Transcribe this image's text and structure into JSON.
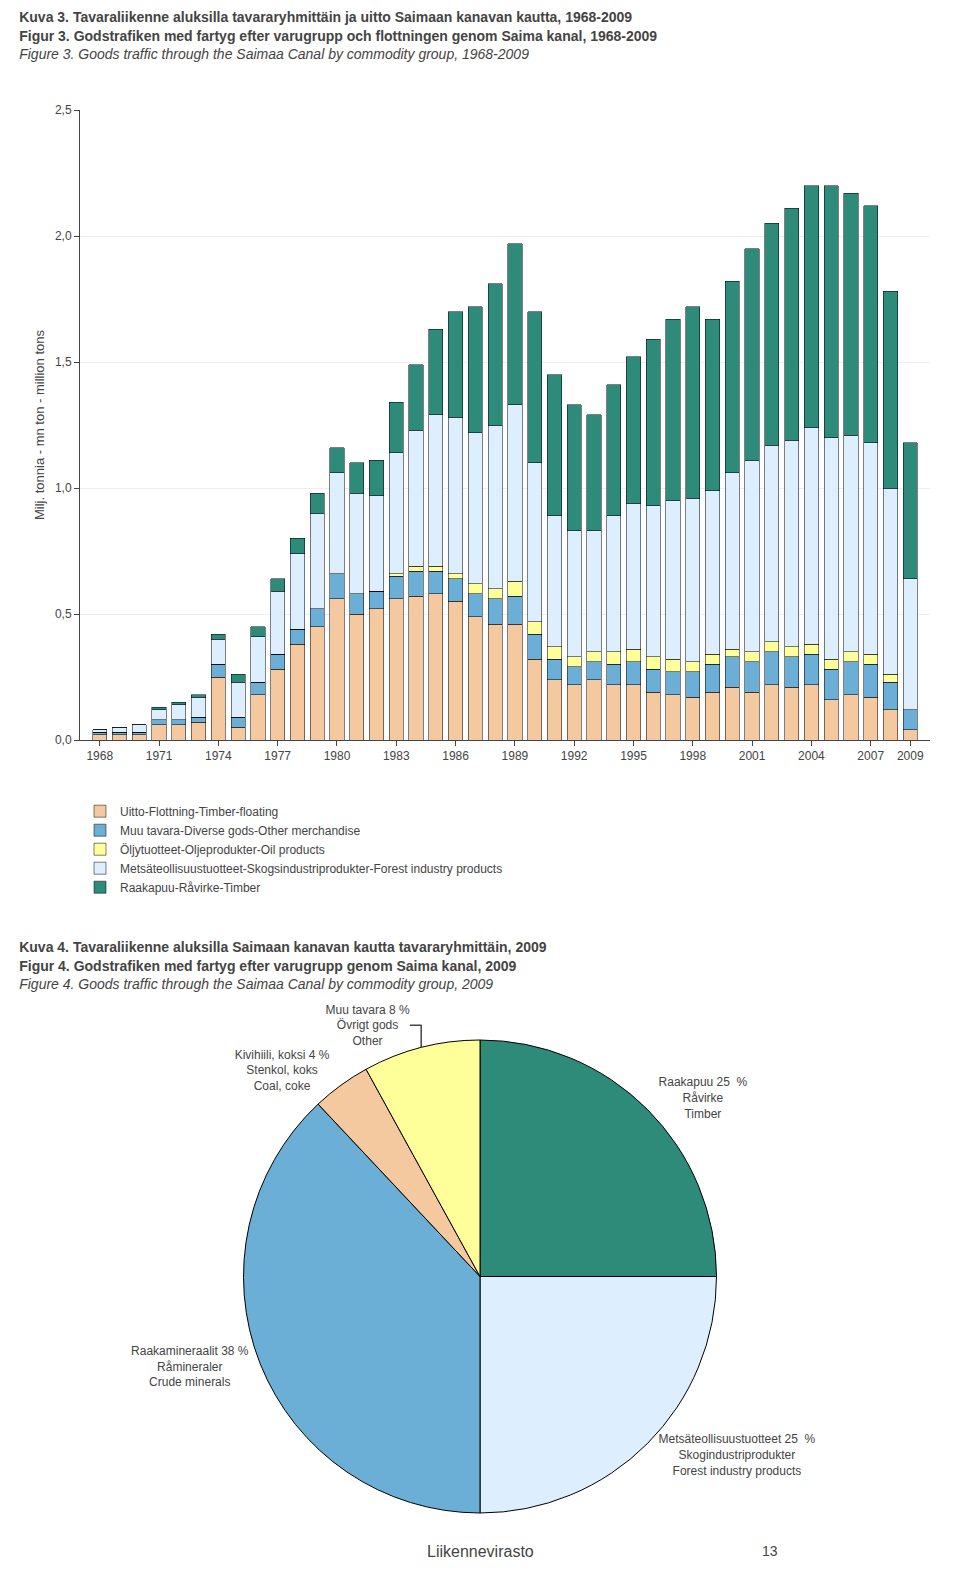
{
  "chart_data": [
    {
      "type": "bar",
      "title": "Kuva 3. Tavaraliikenne aluksilla tavararyhmittäin ja uitto Saimaan kanavan kautta, 1968-2009",
      "subtitle": "Figur 3. Godstrafiken med fartyg efter varugrupp och flottningen genom Saima kanal, 1968-2009\nFigure 3. Goods traffic through the Saimaa Canal by commodity group, 1968-2009",
      "y_label": "Milj. tonnia - mn ton - million tons",
      "x": [
        1968,
        1969,
        1970,
        1971,
        1972,
        1973,
        1974,
        1975,
        1976,
        1977,
        1978,
        1979,
        1980,
        1981,
        1982,
        1983,
        1984,
        1985,
        1986,
        1987,
        1988,
        1989,
        1990,
        1991,
        1992,
        1993,
        1994,
        1995,
        1996,
        1997,
        1998,
        1999,
        2000,
        2001,
        2002,
        2003,
        2004,
        2005,
        2006,
        2007,
        2008,
        2009
      ],
      "series": [
        {
          "name": "Uitto-Flottning-Timber-floating",
          "color": "#F5C9A0",
          "values": [
            0.02,
            0.02,
            0.02,
            0.06,
            0.06,
            0.07,
            0.25,
            0.05,
            0.18,
            0.28,
            0.38,
            0.45,
            0.56,
            0.5,
            0.52,
            0.56,
            0.57,
            0.58,
            0.55,
            0.49,
            0.46,
            0.46,
            0.32,
            0.24,
            0.22,
            0.24,
            0.22,
            0.22,
            0.19,
            0.18,
            0.17,
            0.19,
            0.21,
            0.19,
            0.22,
            0.21,
            0.22,
            0.16,
            0.18,
            0.17,
            0.12,
            0.04
          ]
        },
        {
          "name": "Muu tavara-Diverse gods-Other merchandise",
          "color": "#6BAED6",
          "values": [
            0.01,
            0.01,
            0.01,
            0.02,
            0.02,
            0.02,
            0.05,
            0.04,
            0.05,
            0.06,
            0.06,
            0.07,
            0.1,
            0.08,
            0.07,
            0.09,
            0.1,
            0.09,
            0.09,
            0.09,
            0.1,
            0.11,
            0.1,
            0.08,
            0.07,
            0.07,
            0.08,
            0.09,
            0.09,
            0.09,
            0.1,
            0.11,
            0.12,
            0.12,
            0.13,
            0.12,
            0.12,
            0.12,
            0.13,
            0.13,
            0.11,
            0.08
          ]
        },
        {
          "name": "Öljytuotteet-Oljeprodukter-Oil products",
          "color": "#FFFF99",
          "values": [
            0.0,
            0.0,
            0.0,
            0.0,
            0.0,
            0.0,
            0.0,
            0.0,
            0.0,
            0.0,
            0.0,
            0.0,
            0.0,
            0.0,
            0.0,
            0.01,
            0.02,
            0.02,
            0.02,
            0.04,
            0.04,
            0.06,
            0.05,
            0.05,
            0.04,
            0.04,
            0.05,
            0.05,
            0.05,
            0.05,
            0.04,
            0.04,
            0.03,
            0.04,
            0.04,
            0.04,
            0.04,
            0.04,
            0.04,
            0.04,
            0.03,
            0.0
          ]
        },
        {
          "name": "Metsäteollisuustuotteet-Skogsindustriprodukter-Forest industry products",
          "color": "#DDEEFF",
          "values": [
            0.01,
            0.02,
            0.03,
            0.04,
            0.06,
            0.08,
            0.1,
            0.14,
            0.18,
            0.25,
            0.3,
            0.38,
            0.4,
            0.4,
            0.38,
            0.48,
            0.54,
            0.6,
            0.62,
            0.6,
            0.65,
            0.7,
            0.63,
            0.52,
            0.5,
            0.48,
            0.54,
            0.58,
            0.6,
            0.63,
            0.65,
            0.65,
            0.7,
            0.76,
            0.78,
            0.82,
            0.86,
            0.88,
            0.86,
            0.84,
            0.74,
            0.52
          ]
        },
        {
          "name": "Raakapuu-Råvirke-Timber",
          "color": "#2E8B7A",
          "values": [
            0.0,
            0.0,
            0.0,
            0.01,
            0.01,
            0.01,
            0.02,
            0.03,
            0.04,
            0.05,
            0.06,
            0.08,
            0.1,
            0.12,
            0.14,
            0.2,
            0.26,
            0.34,
            0.42,
            0.5,
            0.56,
            0.64,
            0.6,
            0.56,
            0.5,
            0.46,
            0.52,
            0.58,
            0.66,
            0.72,
            0.76,
            0.68,
            0.76,
            0.84,
            0.88,
            0.92,
            0.96,
            1.0,
            0.96,
            0.94,
            0.78,
            0.54
          ]
        }
      ],
      "stacked": true,
      "xlim": [
        1967,
        2010
      ],
      "xticks": [
        1968,
        1971,
        1974,
        1977,
        1980,
        1983,
        1986,
        1989,
        1992,
        1995,
        1998,
        2001,
        2004,
        2007,
        2009
      ],
      "ylim": [
        0.0,
        2.5
      ],
      "yticks": [
        {
          "value": 0.0,
          "label": "0,0"
        },
        {
          "value": 0.5,
          "label": "0,5"
        },
        {
          "value": 1.0,
          "label": "1,0"
        },
        {
          "value": 1.5,
          "label": "1,5"
        },
        {
          "value": 2.0,
          "label": "2,0"
        },
        {
          "value": 2.5,
          "label": "2,5"
        }
      ],
      "grid": "y",
      "legend": "bottom"
    },
    {
      "type": "pie",
      "title": "Kuva 4. Tavaraliikenne aluksilla Saimaan kanavan kautta tavararyhmittäin, 2009",
      "subtitle": "Figur 4. Godstrafiken med fartyg efter varugrupp genom Saima kanal, 2009\nFigure 4. Goods traffic through the Saimaa Canal by commodity group, 2009",
      "categories": [
        "Raakapuu 25  %\nRåvirke\nTimber",
        "Metsäteollisuustuotteet 25  %\nSkogindustriprodukter\nForest industry products",
        "Raakamineraalit 38 %\nRåmineraler\nCrude minerals",
        "Kivihiili, koksi 4 %\nStenkol, koks\nCoal, coke",
        "Muu tavara 8 %\nÖvrigt gods\nOther"
      ],
      "values": [
        25,
        25,
        38,
        4,
        8
      ],
      "colors": [
        "#2E8B7A",
        "#DDEEFF",
        "#6BAED6",
        "#F5C9A0",
        "#FFFF99"
      ],
      "annotations": [
        "Liikennevirasto",
        "13"
      ]
    }
  ]
}
